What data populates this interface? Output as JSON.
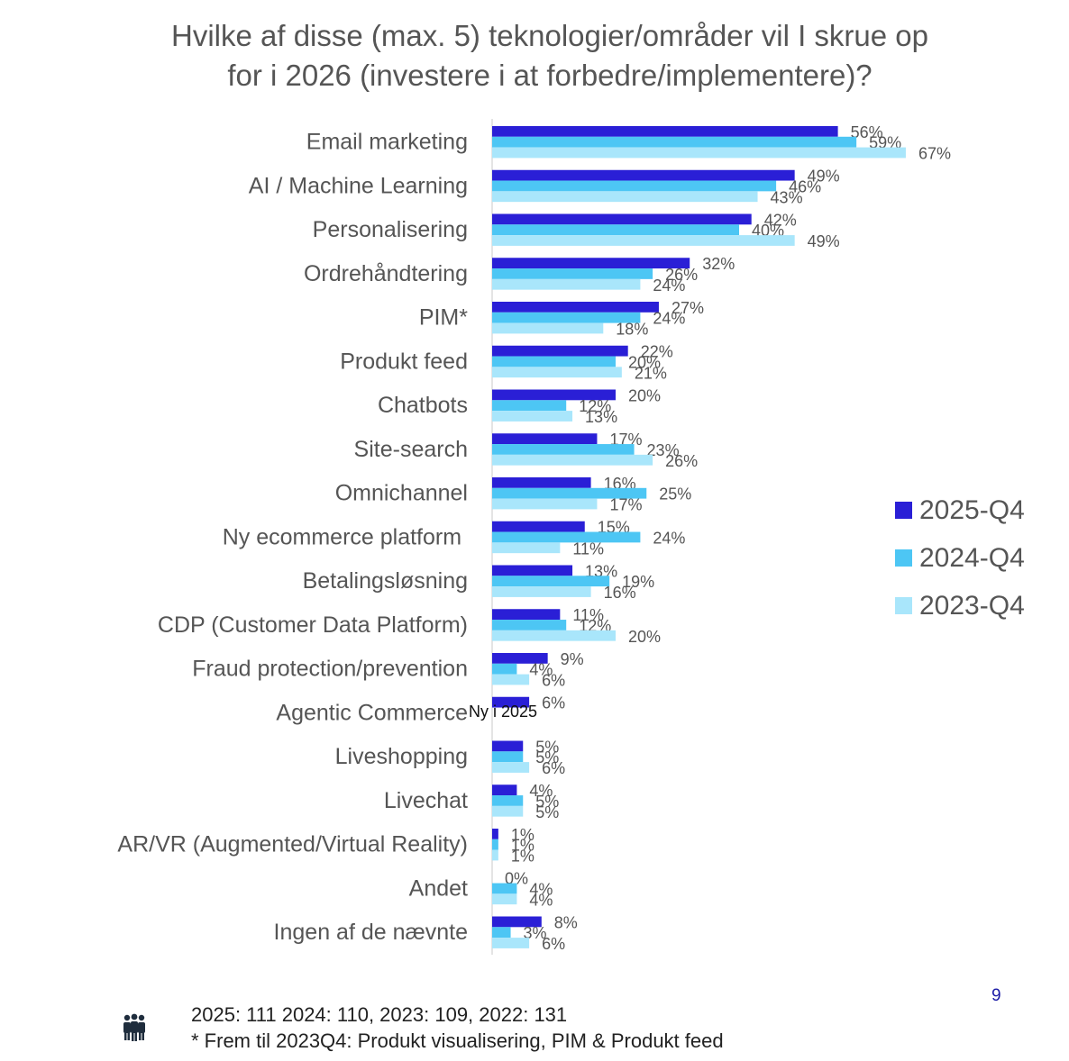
{
  "title_line1": "Hvilke af disse (max. 5) teknologier/områder vil I skrue op",
  "title_line2": "for i 2026 (investere i at forbedre/implementere)?",
  "colors": {
    "s2025": "#2a1fd6",
    "s2024": "#4dc6f4",
    "s2023": "#a9e6fb",
    "text": "#555555",
    "axis": "#c8c8c8"
  },
  "chart_data": {
    "type": "bar",
    "orientation": "horizontal",
    "title": "Hvilke af disse (max. 5) teknologier/områder vil I skrue op for i 2026 (investere i at forbedre/implementere)?",
    "categories": [
      "Email marketing",
      "AI / Machine Learning",
      "Personalisering",
      "Ordrehåndtering",
      "PIM*",
      "Produkt feed",
      "Chatbots",
      "Site-search",
      "Omnichannel",
      "Ny ecommerce platform ",
      "Betalingsløsning",
      "CDP (Customer Data Platform)",
      "Fraud protection/prevention",
      "Agentic Commerce",
      "Liveshopping",
      "Livechat",
      "AR/VR (Augmented/Virtual Reality)",
      "Andet",
      "Ingen af de nævnte"
    ],
    "series": [
      {
        "name": "2025-Q4",
        "values": [
          56,
          49,
          42,
          32,
          27,
          22,
          20,
          17,
          16,
          15,
          13,
          11,
          9,
          6,
          5,
          4,
          1,
          0,
          8
        ]
      },
      {
        "name": "2024-Q4",
        "values": [
          59,
          46,
          40,
          26,
          24,
          20,
          12,
          23,
          25,
          24,
          19,
          12,
          4,
          null,
          5,
          5,
          1,
          4,
          3
        ]
      },
      {
        "name": "2023-Q4",
        "values": [
          67,
          43,
          49,
          24,
          18,
          21,
          13,
          26,
          17,
          11,
          16,
          20,
          6,
          null,
          6,
          5,
          1,
          4,
          6
        ]
      }
    ],
    "value_suffix": "%",
    "xlim": [
      0,
      70
    ],
    "annotation": "Ny i 2025",
    "legend": [
      "2025-Q4",
      "2024-Q4",
      "2023-Q4"
    ]
  },
  "footer_line1": "2025: 111 2024: 110, 2023: 109, 2022: 131",
  "footer_line2": "* Frem til 2023Q4: Produkt visualisering, PIM & Produkt feed",
  "page_number": "9",
  "icon": "people-group-icon"
}
